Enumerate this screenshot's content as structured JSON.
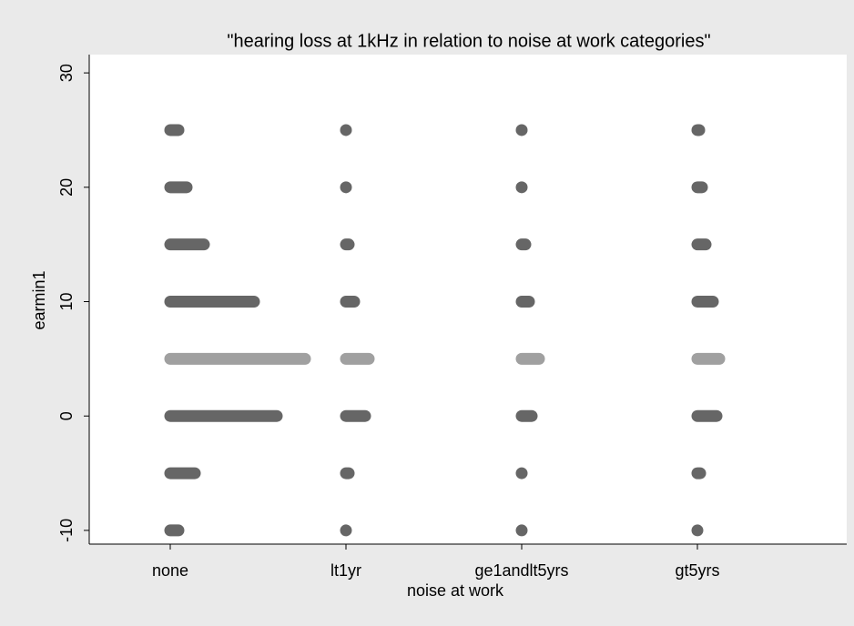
{
  "chart_data": {
    "type": "dotstack",
    "title": "\"hearing loss at 1kHz in relation to  noise at work categories\"",
    "x_label": "noise at work",
    "y_label": "earmin1",
    "categories": [
      "none",
      "lt1yr",
      "ge1andlt5yrs",
      "gt5yrs"
    ],
    "y_values": [
      -10,
      -5,
      0,
      5,
      10,
      15,
      20,
      25
    ],
    "counts": [
      [
        10,
        28,
        118,
        149,
        93,
        38,
        19,
        10
      ],
      [
        1,
        4,
        22,
        26,
        10,
        4,
        1,
        1
      ],
      [
        1,
        1,
        12,
        20,
        9,
        5,
        1,
        1
      ],
      [
        1,
        4,
        22,
        25,
        18,
        10,
        6,
        3
      ]
    ],
    "color": "#666666",
    "median_value": 5,
    "median_color": "#a0a0a0",
    "ylim": [
      -11.2,
      31.6
    ],
    "yticks": [
      -10,
      0,
      10,
      20,
      30
    ]
  }
}
